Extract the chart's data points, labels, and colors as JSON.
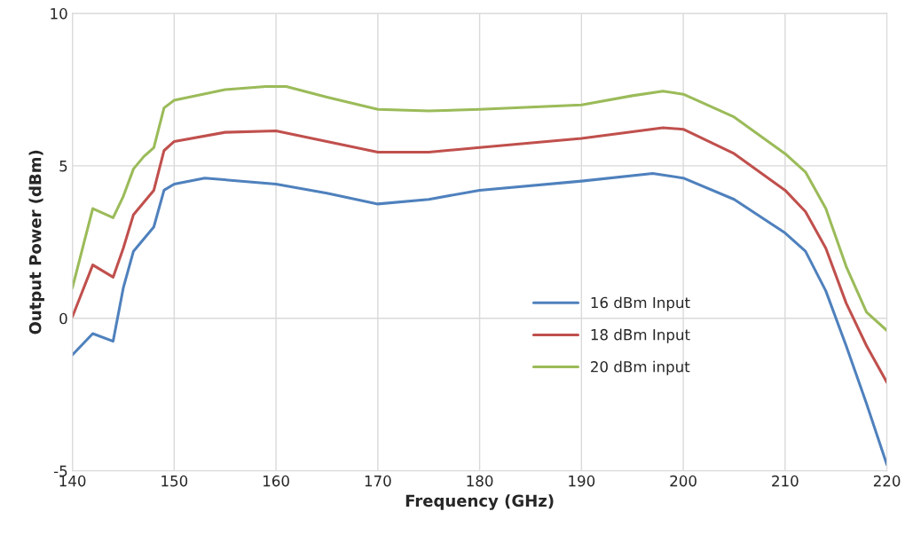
{
  "chart_data": {
    "type": "line",
    "xlabel": "Frequency (GHz)",
    "ylabel": "Output Power (dBm)",
    "xlim": [
      140,
      220
    ],
    "xticks": [
      140,
      150,
      160,
      170,
      180,
      190,
      200,
      210,
      220
    ],
    "ylim": [
      -5,
      10
    ],
    "yticks": [
      -5,
      0,
      5,
      10
    ],
    "grid": true,
    "legend": "lower right",
    "marker": "none",
    "line_style": "solid",
    "series": [
      {
        "name": "16 dBm Input",
        "color": "#4f81bd",
        "x": [
          140,
          142,
          144,
          145,
          146,
          147,
          148,
          149,
          150,
          153,
          160,
          165,
          170,
          175,
          180,
          190,
          197,
          200,
          205,
          210,
          212,
          214,
          216,
          218,
          220
        ],
        "values": [
          -1.2,
          -0.5,
          -0.75,
          1.0,
          2.2,
          2.6,
          3.0,
          4.2,
          4.4,
          4.6,
          4.4,
          4.1,
          3.75,
          3.9,
          4.2,
          4.5,
          4.75,
          4.6,
          3.9,
          2.8,
          2.2,
          0.9,
          -0.9,
          -2.8,
          -4.8
        ]
      },
      {
        "name": "18 dBm Input",
        "color": "#c0504d",
        "x": [
          140,
          142,
          144,
          145,
          146,
          147,
          148,
          149,
          150,
          155,
          160,
          165,
          170,
          175,
          180,
          190,
          198,
          200,
          205,
          210,
          212,
          214,
          216,
          218,
          220
        ],
        "values": [
          0.05,
          1.75,
          1.35,
          2.3,
          3.4,
          3.8,
          4.2,
          5.5,
          5.8,
          6.1,
          6.15,
          5.8,
          5.45,
          5.45,
          5.6,
          5.9,
          6.25,
          6.2,
          5.4,
          4.2,
          3.5,
          2.3,
          0.5,
          -0.9,
          -2.1
        ]
      },
      {
        "name": "20 dBm input",
        "color": "#9bbb59",
        "x": [
          140,
          142,
          144,
          145,
          146,
          147,
          148,
          149,
          150,
          155,
          159,
          161,
          165,
          170,
          175,
          180,
          190,
          195,
          198,
          200,
          205,
          210,
          212,
          214,
          216,
          218,
          220
        ],
        "values": [
          1.0,
          3.6,
          3.3,
          4.0,
          4.9,
          5.3,
          5.6,
          6.9,
          7.15,
          7.5,
          7.6,
          7.6,
          7.25,
          6.85,
          6.8,
          6.85,
          7.0,
          7.3,
          7.45,
          7.35,
          6.6,
          5.4,
          4.8,
          3.6,
          1.7,
          0.2,
          -0.4
        ]
      }
    ]
  }
}
